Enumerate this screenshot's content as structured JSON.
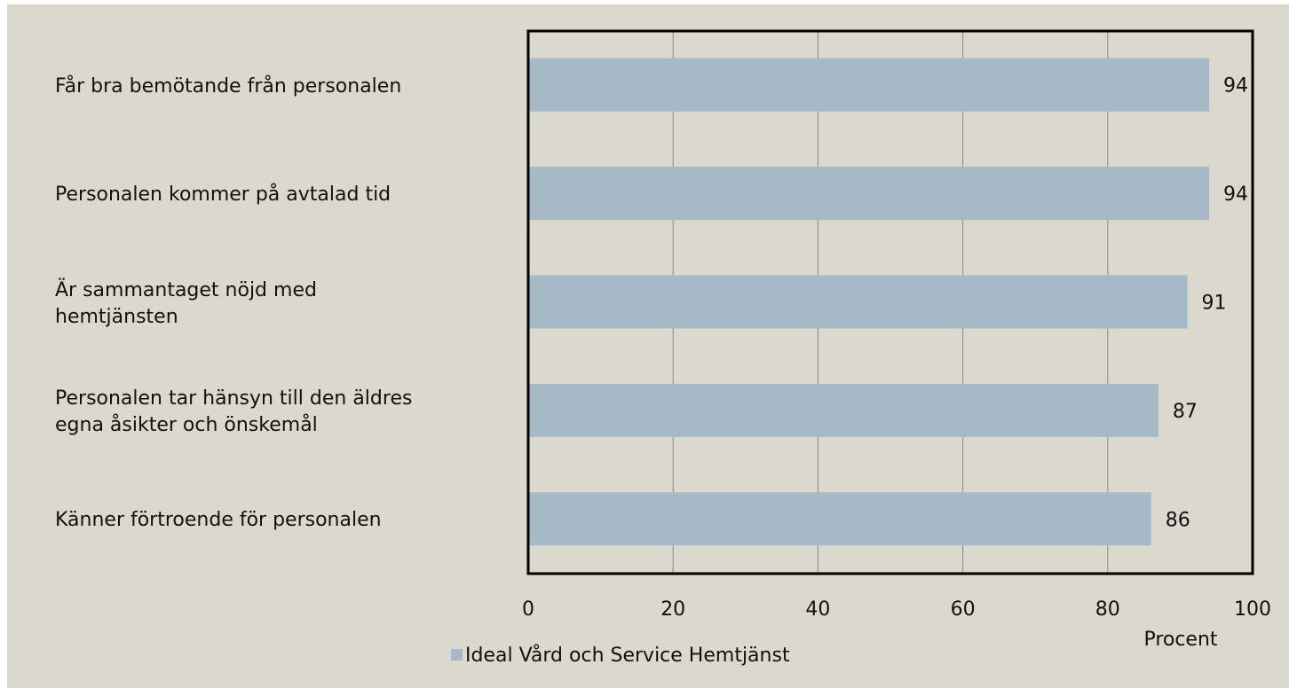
{
  "chart_data": {
    "type": "bar",
    "orientation": "horizontal",
    "categories": [
      "Får bra bemötande från personalen",
      "Personalen kommer på avtalad tid",
      "Är sammantaget nöjd med\nhemtjänsten",
      "Personalen tar hänsyn till den äldres\negna åsikter och önskemål",
      "Känner förtroende för personalen"
    ],
    "series": [
      {
        "name": "Ideal Vård och Service Hemtjänst",
        "color": "#a6b9c6",
        "values": [
          94,
          94,
          91,
          87,
          86
        ]
      }
    ],
    "xlabel": "Procent",
    "xlim": [
      0,
      100
    ],
    "xticks": [
      0,
      20,
      40,
      60,
      80,
      100
    ],
    "grid": true,
    "legend": "bottom"
  }
}
